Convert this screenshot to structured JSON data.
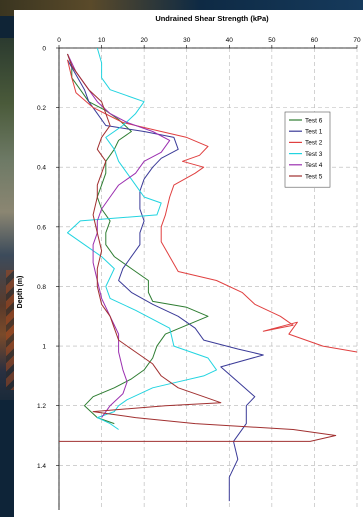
{
  "chart_data": {
    "type": "line",
    "title": "Undrained Shear Strength (kPa)",
    "ylabel": "Depth (m)",
    "xlabel": "",
    "xlim": [
      0,
      70
    ],
    "ylim": [
      0,
      1.55
    ],
    "y_inverted": true,
    "x_axis_position": "top",
    "x_ticks": [
      0,
      10,
      20,
      30,
      40,
      50,
      60,
      70
    ],
    "y_ticks": [
      0,
      0.2,
      0.4,
      0.6,
      0.8,
      1,
      1.2,
      1.4
    ],
    "grid": true,
    "legend_position": "right",
    "series": [
      {
        "name": "Test 6",
        "color": "#2e7d32",
        "points": [
          [
            2,
            0.02
          ],
          [
            3,
            0.06
          ],
          [
            3,
            0.1
          ],
          [
            5,
            0.14
          ],
          [
            7,
            0.18
          ],
          [
            11,
            0.21
          ],
          [
            14,
            0.24
          ],
          [
            17,
            0.28
          ],
          [
            14,
            0.31
          ],
          [
            13,
            0.34
          ],
          [
            11,
            0.38
          ],
          [
            11,
            0.42
          ],
          [
            10,
            0.46
          ],
          [
            9,
            0.5
          ],
          [
            10,
            0.54
          ],
          [
            12,
            0.58
          ],
          [
            11,
            0.62
          ],
          [
            11,
            0.66
          ],
          [
            13,
            0.7
          ],
          [
            17,
            0.74
          ],
          [
            21,
            0.78
          ],
          [
            21,
            0.82
          ],
          [
            22,
            0.85
          ],
          [
            30,
            0.87
          ],
          [
            35,
            0.9
          ],
          [
            30,
            0.93
          ],
          [
            25,
            0.96
          ],
          [
            23,
            1.0
          ],
          [
            22,
            1.04
          ],
          [
            20,
            1.08
          ],
          [
            17,
            1.11
          ],
          [
            13,
            1.14
          ],
          [
            8,
            1.17
          ],
          [
            6,
            1.2
          ],
          [
            9,
            1.24
          ],
          [
            13,
            1.26
          ]
        ]
      },
      {
        "name": "Test 1",
        "color": "#3b3b98",
        "points": [
          [
            2,
            0.04
          ],
          [
            4,
            0.09
          ],
          [
            6,
            0.14
          ],
          [
            7,
            0.18
          ],
          [
            9,
            0.22
          ],
          [
            11,
            0.26
          ],
          [
            20,
            0.28
          ],
          [
            27,
            0.3
          ],
          [
            28,
            0.34
          ],
          [
            24,
            0.37
          ],
          [
            22,
            0.4
          ],
          [
            20,
            0.44
          ],
          [
            19,
            0.48
          ],
          [
            19,
            0.54
          ],
          [
            20,
            0.58
          ],
          [
            19,
            0.62
          ],
          [
            19,
            0.66
          ],
          [
            17,
            0.7
          ],
          [
            15,
            0.74
          ],
          [
            14,
            0.78
          ],
          [
            17,
            0.82
          ],
          [
            22,
            0.86
          ],
          [
            28,
            0.9
          ],
          [
            32,
            0.94
          ],
          [
            34,
            0.98
          ],
          [
            42,
            1.01
          ],
          [
            48,
            1.03
          ],
          [
            38,
            1.07
          ],
          [
            42,
            1.12
          ],
          [
            46,
            1.17
          ],
          [
            44,
            1.2
          ],
          [
            44,
            1.26
          ],
          [
            41,
            1.32
          ],
          [
            42,
            1.38
          ],
          [
            40,
            1.44
          ],
          [
            40,
            1.52
          ]
        ]
      },
      {
        "name": "Test 2",
        "color": "#e04040",
        "points": [
          [
            2,
            0.04
          ],
          [
            3,
            0.1
          ],
          [
            4,
            0.15
          ],
          [
            8,
            0.2
          ],
          [
            15,
            0.25
          ],
          [
            24,
            0.28
          ],
          [
            30,
            0.3
          ],
          [
            35,
            0.33
          ],
          [
            33,
            0.36
          ],
          [
            29,
            0.38
          ],
          [
            34,
            0.4
          ],
          [
            32,
            0.42
          ],
          [
            27,
            0.46
          ],
          [
            26,
            0.5
          ],
          [
            25,
            0.56
          ],
          [
            24,
            0.6
          ],
          [
            24,
            0.65
          ],
          [
            26,
            0.7
          ],
          [
            28,
            0.75
          ],
          [
            37,
            0.78
          ],
          [
            43,
            0.82
          ],
          [
            46,
            0.86
          ],
          [
            52,
            0.9
          ],
          [
            55,
            0.93
          ],
          [
            48,
            0.95
          ],
          [
            56,
            0.92
          ],
          [
            54,
            0.96
          ],
          [
            62,
            1.0
          ],
          [
            70,
            1.02
          ]
        ]
      },
      {
        "name": "Test 3",
        "color": "#22d4e0",
        "points": [
          [
            9,
            0.0
          ],
          [
            10,
            0.05
          ],
          [
            10,
            0.1
          ],
          [
            12,
            0.14
          ],
          [
            20,
            0.18
          ],
          [
            18,
            0.22
          ],
          [
            15,
            0.26
          ],
          [
            11,
            0.3
          ],
          [
            13,
            0.34
          ],
          [
            14,
            0.38
          ],
          [
            16,
            0.42
          ],
          [
            18,
            0.46
          ],
          [
            20,
            0.5
          ],
          [
            24,
            0.52
          ],
          [
            23,
            0.56
          ],
          [
            5,
            0.58
          ],
          [
            2,
            0.62
          ],
          [
            6,
            0.66
          ],
          [
            10,
            0.7
          ],
          [
            13,
            0.74
          ],
          [
            11,
            0.8
          ],
          [
            12,
            0.84
          ],
          [
            18,
            0.88
          ],
          [
            26,
            0.94
          ],
          [
            27,
            1.0
          ],
          [
            35,
            1.04
          ],
          [
            37,
            1.08
          ],
          [
            34,
            1.1
          ],
          [
            28,
            1.12
          ],
          [
            22,
            1.14
          ],
          [
            16,
            1.18
          ],
          [
            14,
            1.2
          ],
          [
            13,
            1.22
          ],
          [
            9,
            1.24
          ],
          [
            12,
            1.26
          ],
          [
            14,
            1.28
          ]
        ]
      },
      {
        "name": "Test 4",
        "color": "#9b30b0",
        "points": [
          [
            2,
            0.02
          ],
          [
            4,
            0.08
          ],
          [
            6,
            0.12
          ],
          [
            9,
            0.18
          ],
          [
            12,
            0.22
          ],
          [
            16,
            0.25
          ],
          [
            22,
            0.28
          ],
          [
            26,
            0.31
          ],
          [
            24,
            0.35
          ],
          [
            20,
            0.38
          ],
          [
            18,
            0.42
          ],
          [
            14,
            0.46
          ],
          [
            12,
            0.5
          ],
          [
            10,
            0.54
          ],
          [
            9,
            0.58
          ],
          [
            9,
            0.62
          ],
          [
            8,
            0.66
          ],
          [
            8,
            0.72
          ],
          [
            9,
            0.78
          ],
          [
            10,
            0.84
          ],
          [
            12,
            0.9
          ],
          [
            14,
            0.96
          ],
          [
            14,
            1.02
          ],
          [
            15,
            1.08
          ],
          [
            16,
            1.12
          ],
          [
            15,
            1.16
          ],
          [
            12,
            1.2
          ],
          [
            10,
            1.24
          ]
        ]
      },
      {
        "name": "Test 5",
        "color": "#a13030",
        "points": [
          [
            2,
            0.02
          ],
          [
            3,
            0.06
          ],
          [
            5,
            0.1
          ],
          [
            7,
            0.14
          ],
          [
            10,
            0.18
          ],
          [
            11,
            0.22
          ],
          [
            12,
            0.26
          ],
          [
            10,
            0.3
          ],
          [
            9,
            0.34
          ],
          [
            11,
            0.38
          ],
          [
            10,
            0.42
          ],
          [
            9,
            0.46
          ],
          [
            9,
            0.5
          ],
          [
            8,
            0.56
          ],
          [
            9,
            0.62
          ],
          [
            10,
            0.68
          ],
          [
            9,
            0.74
          ],
          [
            9,
            0.8
          ],
          [
            10,
            0.86
          ],
          [
            12,
            0.9
          ],
          [
            13,
            0.94
          ],
          [
            14,
            0.98
          ],
          [
            18,
            1.02
          ],
          [
            22,
            1.06
          ],
          [
            24,
            1.1
          ],
          [
            28,
            1.14
          ],
          [
            34,
            1.17
          ],
          [
            38,
            1.19
          ],
          [
            25,
            1.2
          ],
          [
            8,
            1.22
          ],
          [
            18,
            1.24
          ],
          [
            32,
            1.26
          ],
          [
            55,
            1.28
          ],
          [
            65,
            1.3
          ],
          [
            59,
            1.32
          ],
          [
            0,
            1.32
          ]
        ]
      }
    ]
  }
}
